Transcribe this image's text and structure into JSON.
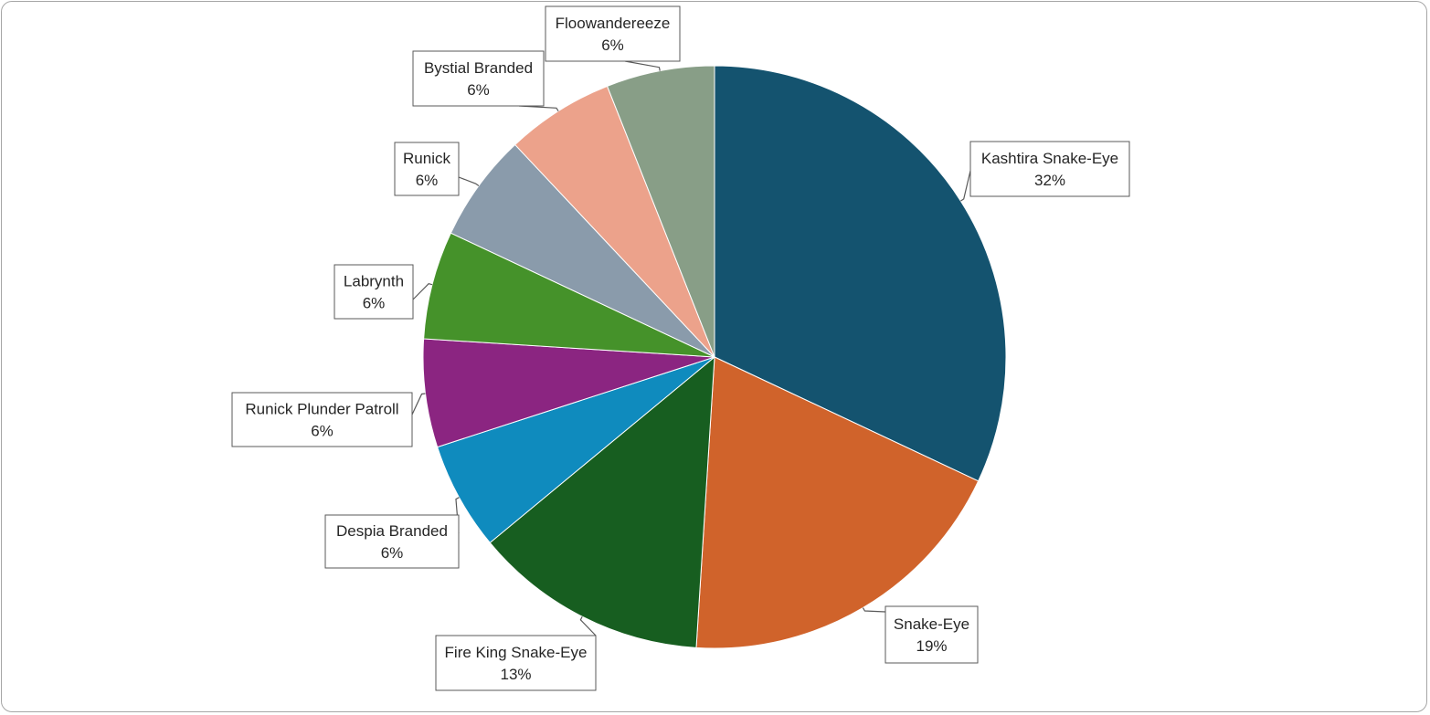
{
  "chart_data": {
    "type": "pie",
    "title": "",
    "legend": "none",
    "slices": [
      {
        "name": "Kashtira Snake-Eye",
        "value": 32,
        "label": "32%",
        "color": "#14536f"
      },
      {
        "name": "Snake-Eye",
        "value": 19,
        "label": "19%",
        "color": "#d0632b"
      },
      {
        "name": "Fire King Snake-Eye",
        "value": 13,
        "label": "13%",
        "color": "#175e20"
      },
      {
        "name": "Despia Branded",
        "value": 6,
        "label": "6%",
        "color": "#0f8bbe"
      },
      {
        "name": "Runick Plunder Patroll",
        "value": 6,
        "label": "6%",
        "color": "#8b2581"
      },
      {
        "name": "Labrynth",
        "value": 6,
        "label": "6%",
        "color": "#45922a"
      },
      {
        "name": "Runick",
        "value": 6,
        "label": "6%",
        "color": "#8a9bab"
      },
      {
        "name": "Bystial Branded",
        "value": 6,
        "label": "6%",
        "color": "#eca28b"
      },
      {
        "name": "Floowandereeze",
        "value": 6,
        "label": "6%",
        "color": "#889e87"
      }
    ]
  }
}
